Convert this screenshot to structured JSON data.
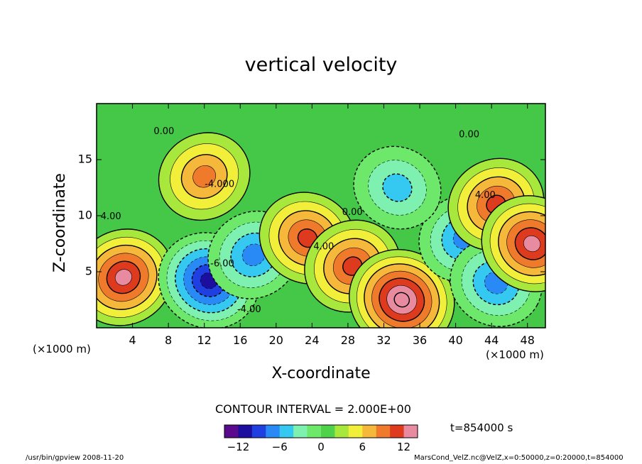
{
  "chart_data": {
    "type": "heatmap",
    "title": "vertical velocity",
    "xlabel": "X-coordinate",
    "ylabel": "Z-coordinate",
    "x_unit": "(×1000 m)",
    "xlim": [
      0,
      50
    ],
    "ylim": [
      0,
      20
    ],
    "x_ticks": [
      4,
      8,
      12,
      16,
      20,
      24,
      28,
      32,
      36,
      40,
      44,
      48
    ],
    "y_ticks": [
      5,
      10,
      15
    ],
    "contour_interval_label": "CONTOUR INTERVAL = 2.000E+00",
    "contour_labels": [
      {
        "text": "0.00",
        "x": 7.5,
        "y": 17.5
      },
      {
        "text": "0.00",
        "x": 28.5,
        "y": 10.3
      },
      {
        "text": "0.00",
        "x": 41.5,
        "y": 17.2
      },
      {
        "text": "4.00",
        "x": 1.6,
        "y": 9.9
      },
      {
        "text": "4.00",
        "x": 25.3,
        "y": 7.2
      },
      {
        "text": "4.00",
        "x": 43.3,
        "y": 11.8
      },
      {
        "text": "-4.00",
        "x": 17.0,
        "y": 1.6
      },
      {
        "text": "-6.00",
        "x": 14.0,
        "y": 5.7
      },
      {
        "text": "-4.000",
        "x": 13.7,
        "y": 12.8
      }
    ],
    "colorbar": {
      "min": -14,
      "max": 14,
      "ticks": [
        -12,
        -6,
        0,
        6,
        12
      ],
      "colors": [
        "#5a0a8c",
        "#1c0fa0",
        "#1f3fe0",
        "#2a8af5",
        "#35c8f0",
        "#7ef0b0",
        "#6ee86a",
        "#4fd24a",
        "#a8e83c",
        "#f2ef3a",
        "#f6b83a",
        "#ef7a2c",
        "#dd3a1e",
        "#e88aa0"
      ]
    },
    "features": [
      {
        "kind": "updraft",
        "x": 3.0,
        "y": 4.5,
        "peak": 12
      },
      {
        "kind": "downdraft",
        "x": 12.5,
        "y": 4.2,
        "peak": -12
      },
      {
        "kind": "downdraft",
        "x": 17.5,
        "y": 6.5,
        "peak": -7
      },
      {
        "kind": "updraft",
        "x": 23.5,
        "y": 8.0,
        "peak": 9
      },
      {
        "kind": "updraft",
        "x": 28.5,
        "y": 5.5,
        "peak": 9
      },
      {
        "kind": "updraft",
        "x": 34.0,
        "y": 2.5,
        "peak": 14
      },
      {
        "kind": "downdraft",
        "x": 41.0,
        "y": 8.0,
        "peak": -8
      },
      {
        "kind": "downdraft",
        "x": 44.5,
        "y": 4.0,
        "peak": -8
      },
      {
        "kind": "updraft",
        "x": 44.5,
        "y": 11.0,
        "peak": 9
      },
      {
        "kind": "updraft",
        "x": 48.5,
        "y": 7.5,
        "peak": 11
      },
      {
        "kind": "updraft",
        "x": 12.0,
        "y": 13.5,
        "peak": 8
      },
      {
        "kind": "downdraft",
        "x": 33.5,
        "y": 12.5,
        "peak": -6
      }
    ]
  },
  "annotations": {
    "time_label": "t=854000 s",
    "footer_left": "/usr/bin/gpview  2008-11-20",
    "footer_right": "MarsCond_VelZ.nc@VelZ,x=0:50000,z=0:20000,t=854000"
  }
}
